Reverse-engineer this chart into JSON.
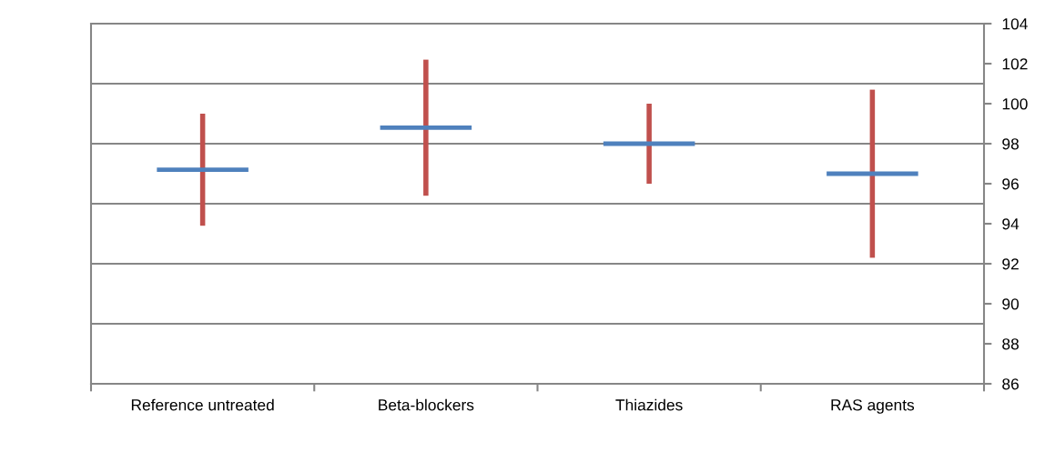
{
  "chart_data": {
    "type": "box",
    "categories": [
      "Reference untreated",
      "Beta-blockers",
      "Thiazides",
      "RAS agents"
    ],
    "series": [
      {
        "color": "#4f81bd",
        "boxes": [
          {
            "low": 93.9,
            "q1": 96.7,
            "median": 96.7,
            "q3": 96.7,
            "high": 99.5
          },
          {
            "low": 95.4,
            "q1": 98.8,
            "median": 98.8,
            "q3": 98.8,
            "high": 102.2
          },
          {
            "low": 96.0,
            "q1": 98.0,
            "median": 98.0,
            "q3": 98.0,
            "high": 100.0
          },
          {
            "low": 92.3,
            "q1": 96.5,
            "median": 96.5,
            "q3": 96.5,
            "high": 100.7
          }
        ]
      }
    ],
    "ylim": [
      86,
      104
    ],
    "yticks": [
      86,
      88,
      90,
      92,
      94,
      96,
      98,
      100,
      102,
      104
    ],
    "ref_lines": [
      {
        "axis": "y",
        "value": 89,
        "color": "#868686"
      },
      {
        "axis": "y",
        "value": 92,
        "color": "#868686"
      },
      {
        "axis": "y",
        "value": 95,
        "color": "#868686"
      },
      {
        "axis": "y",
        "value": 98,
        "color": "#868686"
      },
      {
        "axis": "y",
        "value": 101,
        "color": "#868686"
      }
    ]
  }
}
